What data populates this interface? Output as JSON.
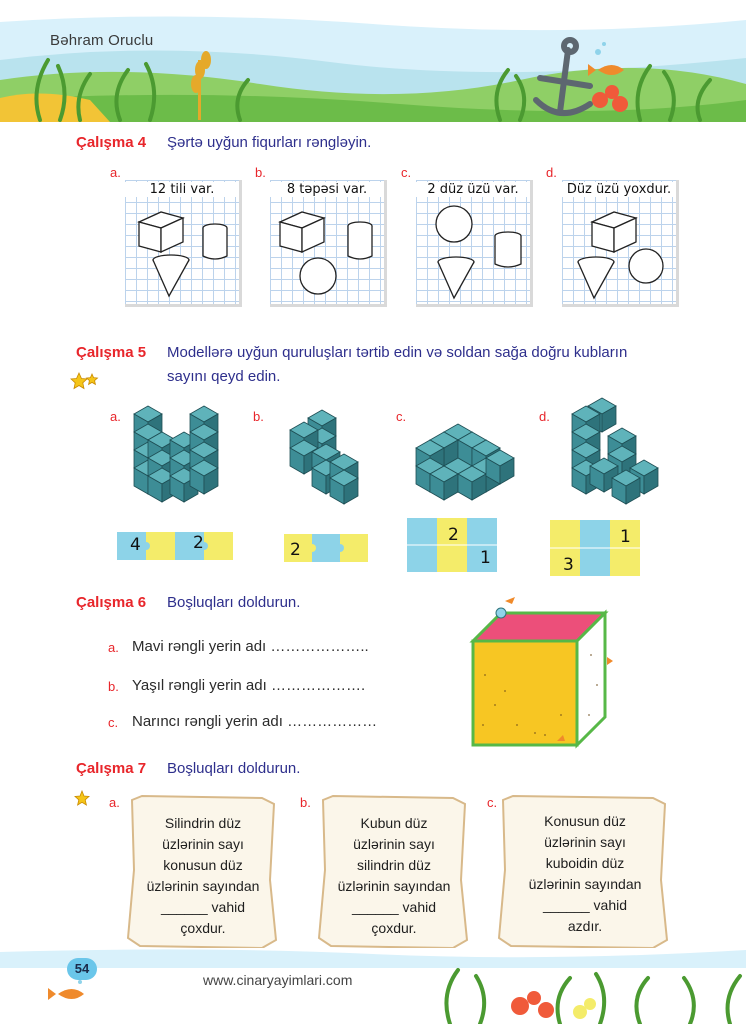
{
  "header": {
    "author": "Bəhram Oruclu"
  },
  "ex4": {
    "title": "Çalışma 4",
    "instruction": "Şərtə uyğun fiqurları rəngləyin.",
    "items": [
      {
        "letter": "a.",
        "label": "12 tili var."
      },
      {
        "letter": "b.",
        "label": "8 təpəsi var."
      },
      {
        "letter": "c.",
        "label": "2 düz üzü var."
      },
      {
        "letter": "d.",
        "label": "Düz üzü yoxdur."
      }
    ]
  },
  "ex5": {
    "title": "Çalışma 5",
    "instruction_line1": "Modellərə uyğun quruluşları tərtib edin və soldan sağa doğru kubların",
    "instruction_line2": "sayını qeyd edin.",
    "letters": [
      "a.",
      "b.",
      "c.",
      "d."
    ],
    "puzzle_numbers": {
      "a": [
        "4",
        "2"
      ],
      "b": [
        "2"
      ],
      "c": [
        "2",
        "1"
      ],
      "d": [
        "3",
        "1"
      ]
    }
  },
  "ex6": {
    "title": "Çalışma 6",
    "instruction": "Boşluqları doldurun.",
    "items": [
      {
        "letter": "a.",
        "text": "Mavi rəngli yerin adı ……………….."
      },
      {
        "letter": "b.",
        "text": "Yaşıl rəngli yerin adı ………………."
      },
      {
        "letter": "c.",
        "text": "Narıncı rəngli yerin adı ………………"
      }
    ]
  },
  "ex7": {
    "title": "Çalışma 7",
    "instruction": "Boşluqları doldurun.",
    "items": [
      {
        "letter": "a.",
        "lines": [
          "Silindrin düz",
          "üzlərinin sayı",
          "konusun düz",
          "üzlərinin sayından",
          "______ vahid",
          "çoxdur."
        ]
      },
      {
        "letter": "b.",
        "lines": [
          "Kubun düz",
          "üzlərinin sayı",
          "silindrin düz",
          "üzlərinin sayından",
          "______ vahid",
          "çoxdur."
        ]
      },
      {
        "letter": "c.",
        "lines": [
          "Konusun düz",
          "üzlərinin sayı",
          "kuboidin düz",
          "üzlərinin sayından",
          "______ vahid",
          "azdır."
        ]
      }
    ]
  },
  "footer": {
    "page_number": "54",
    "website": "www.cinaryayimlari.com"
  },
  "colors": {
    "title_red": "#e8262b",
    "text_blue": "#2e2f8c",
    "cube_teal": "#3d8d96",
    "puzzle_blue": "#8dd3e8",
    "puzzle_yellow": "#f4ec6a"
  }
}
